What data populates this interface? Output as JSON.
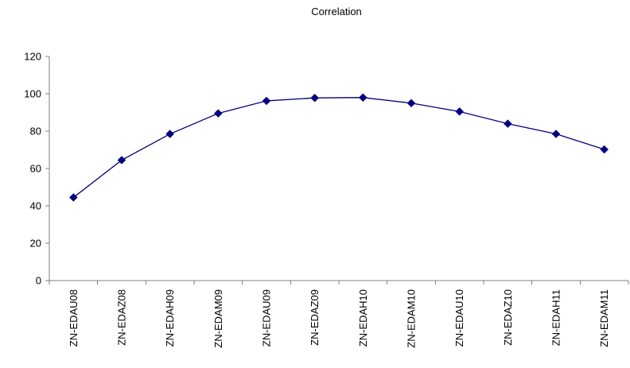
{
  "chart_data": {
    "type": "line",
    "title": "Correlation",
    "xlabel": "",
    "ylabel": "",
    "categories": [
      "ZN-EDAU08",
      "ZN-EDAZ08",
      "ZN-EDAH09",
      "ZN-EDAM09",
      "ZN-EDAU09",
      "ZN-EDAZ09",
      "ZN-EDAH10",
      "ZN-EDAM10",
      "ZN-EDAU10",
      "ZN-EDAZ10",
      "ZN-EDAH11",
      "ZN-EDAM11"
    ],
    "series": [
      {
        "values": [
          44.5,
          64.5,
          78.5,
          89.5,
          96.2,
          97.8,
          98.0,
          95.0,
          90.5,
          84.0,
          78.5,
          70.2
        ]
      }
    ],
    "ylim": [
      0,
      120
    ],
    "yticks": [
      0,
      20,
      40,
      60,
      80,
      100,
      120
    ],
    "grid": false,
    "legend": "none",
    "colors": {
      "line": "#000080",
      "marker": "#000080",
      "axis": "#808080"
    }
  }
}
